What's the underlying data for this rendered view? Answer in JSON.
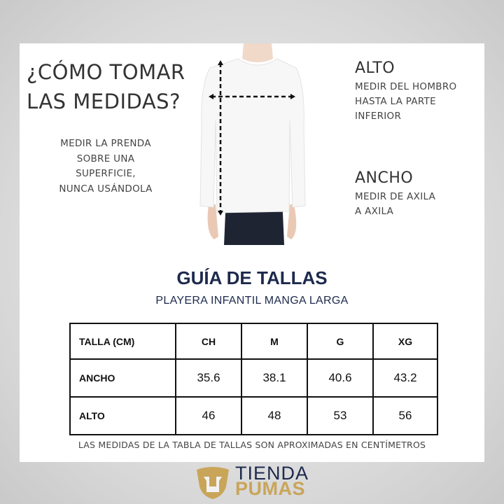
{
  "header": {
    "question_line1": "¿CÓMO TOMAR",
    "question_line2": "LAS MEDIDAS?"
  },
  "instructions": {
    "line1": "MEDIR LA PRENDA",
    "line2": "SOBRE UNA",
    "line3": "SUPERFICIE,",
    "line4": "NUNCA USÁNDOLA"
  },
  "alto": {
    "title": "ALTO",
    "line1": "MEDIR DEL HOMBRO",
    "line2": "HASTA LA PARTE",
    "line3": "INFERIOR"
  },
  "ancho": {
    "title": "ANCHO",
    "line1": "MEDIR DE AXILA",
    "line2": "A AXILA"
  },
  "guide": {
    "title": "GUÍA DE TALLAS",
    "subtitle": "PLAYERA INFANTIL MANGA LARGA"
  },
  "table": {
    "header": [
      "TALLA (CM)",
      "CH",
      "M",
      "G",
      "XG"
    ],
    "rows": [
      {
        "label": "ANCHO",
        "values": [
          "35.6",
          "38.1",
          "40.6",
          "43.2"
        ]
      },
      {
        "label": "ALTO",
        "values": [
          "46",
          "48",
          "53",
          "56"
        ]
      }
    ]
  },
  "note": "LAS MEDIDAS DE LA TABLA DE TALLAS SON APROXIMADAS EN CENTÍMETROS",
  "logo": {
    "line1": "TIENDA",
    "line2": "PUMAS",
    "gold": "#c9a55a",
    "navy": "#1d2a4d"
  }
}
